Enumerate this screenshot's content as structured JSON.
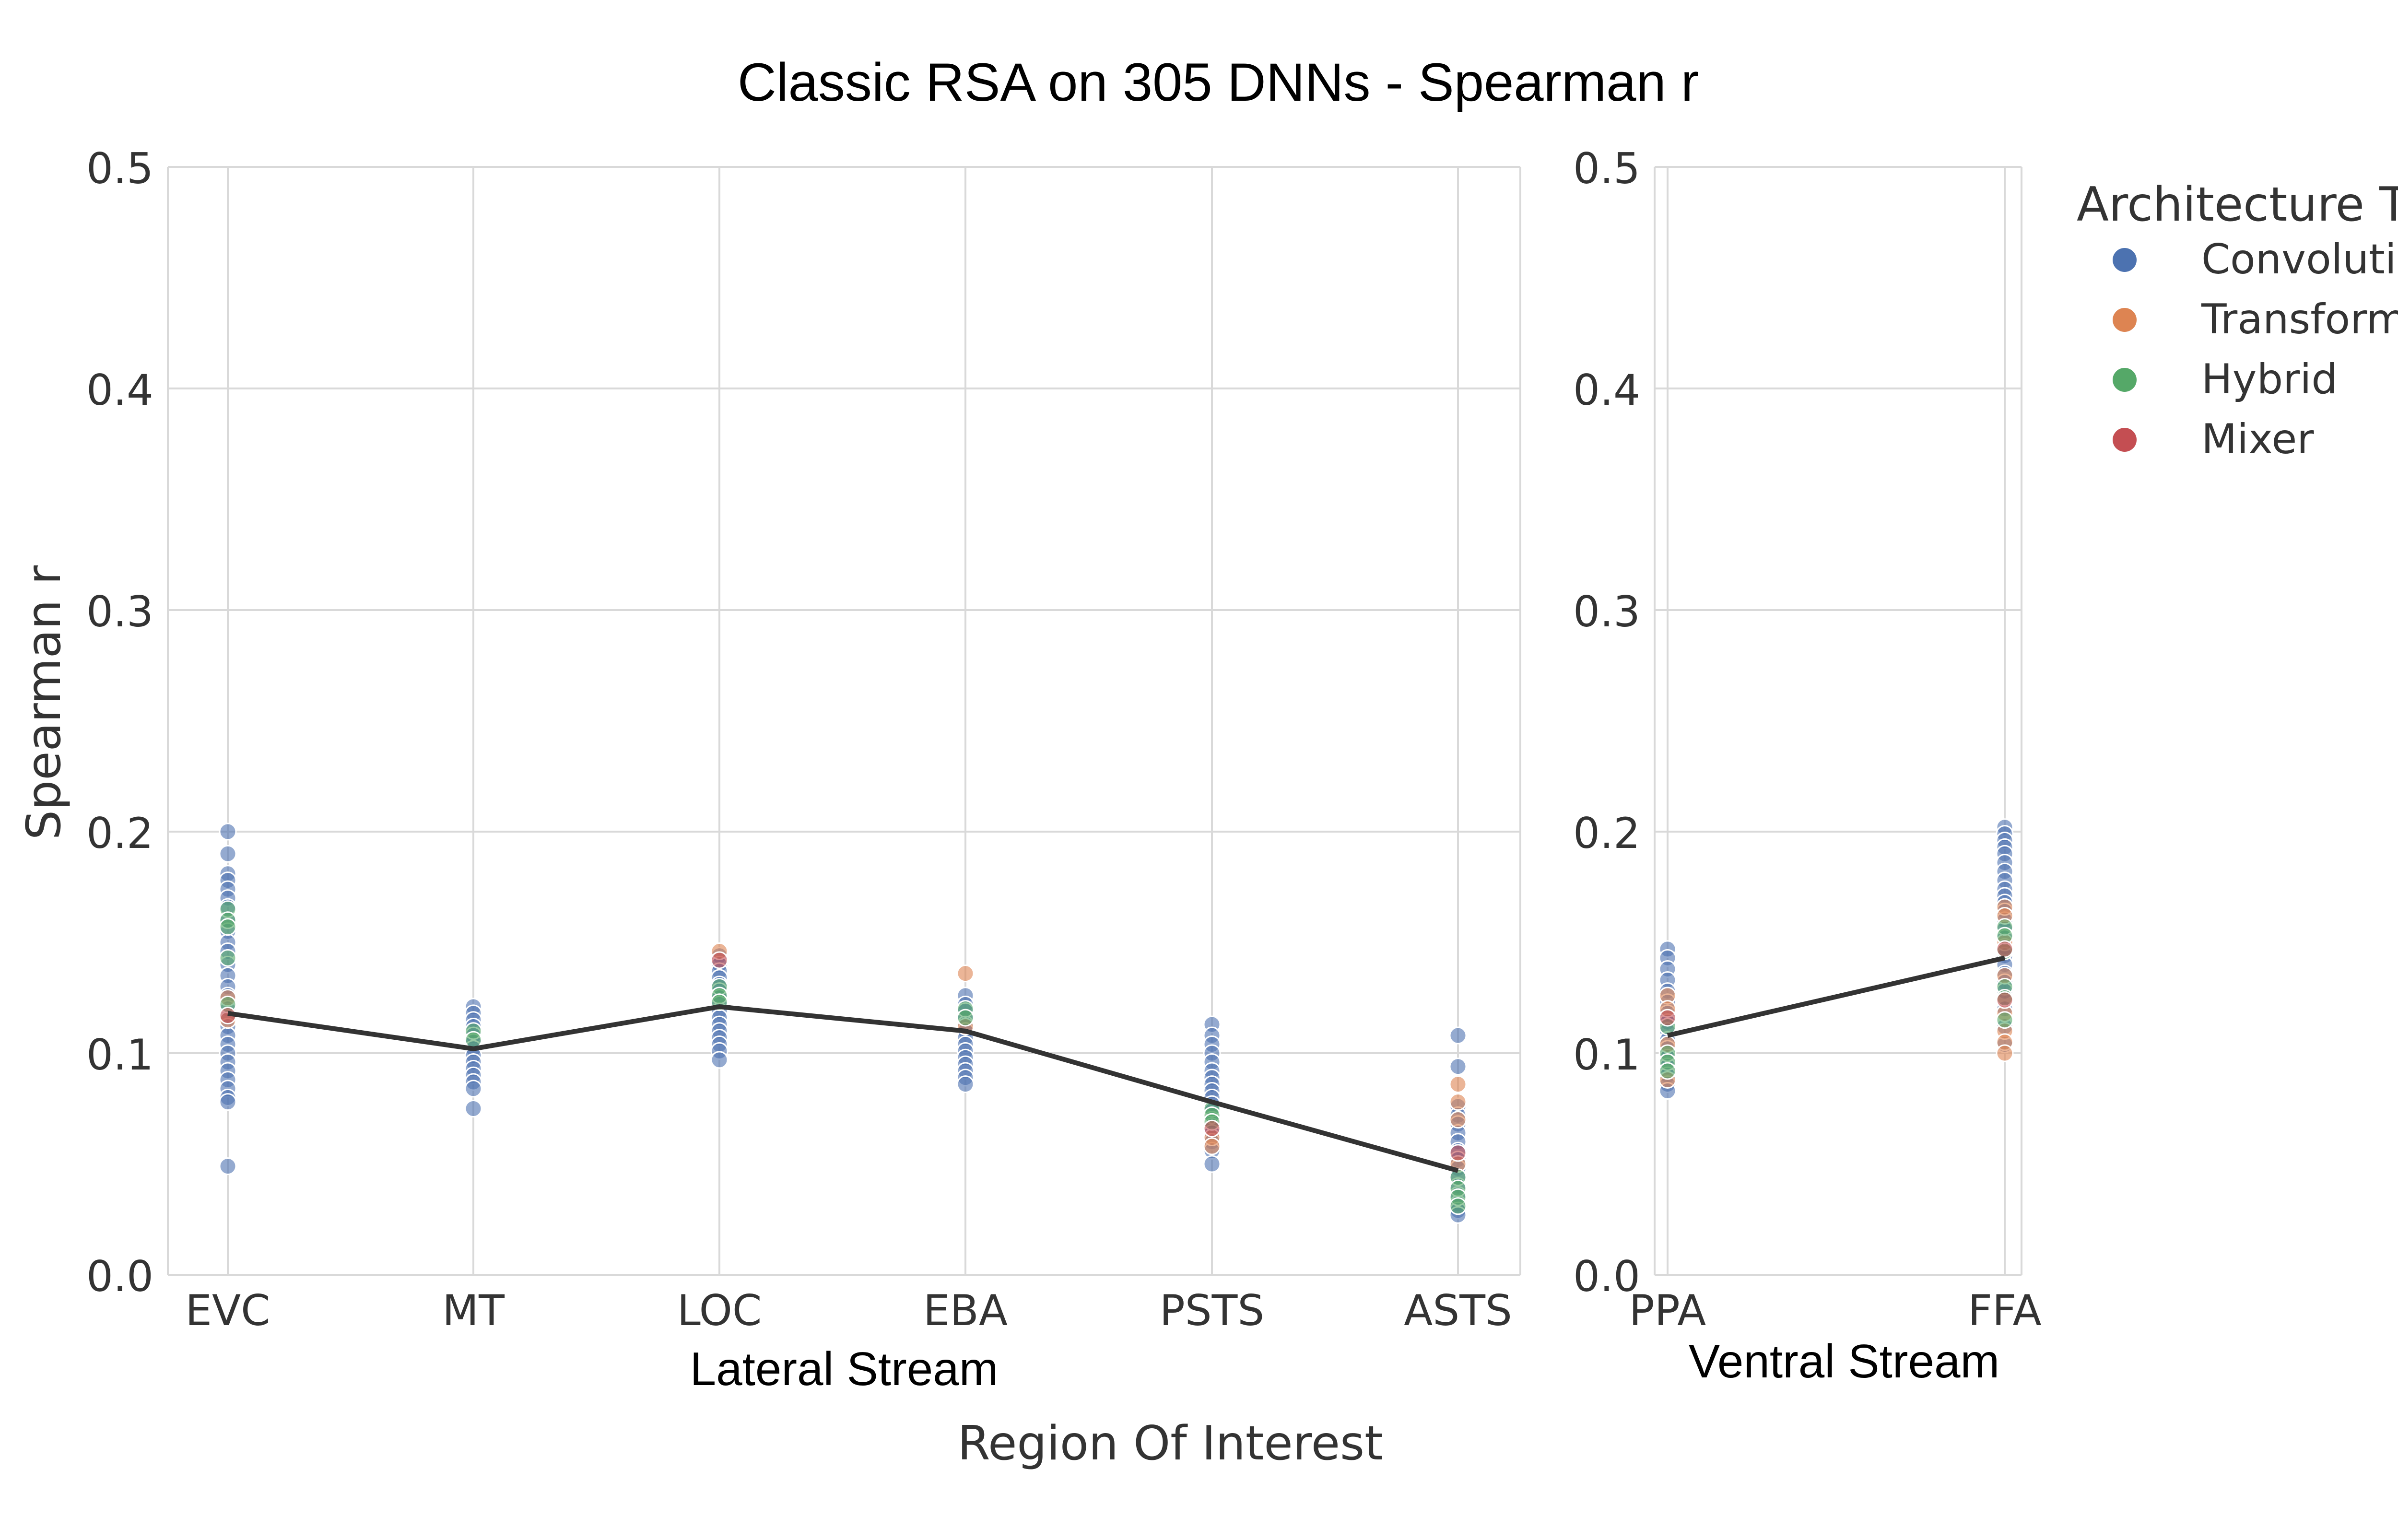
{
  "chart_data": {
    "type": "scatter",
    "title": "Classic RSA on 305 DNNs - Spearman r",
    "ylabel": "Spearman r",
    "xlabel": "Region Of Interest",
    "ylim": [
      0,
      0.5
    ],
    "yticks": [
      "0.0",
      "0.1",
      "0.2",
      "0.3",
      "0.4",
      "0.5"
    ],
    "grid": true,
    "legend": {
      "title": "Architecture Type",
      "placement": "right",
      "entries": [
        {
          "name": "Convolutional",
          "color": "#4c72b0"
        },
        {
          "name": "Transformer",
          "color": "#dd8452"
        },
        {
          "name": "Hybrid",
          "color": "#55a868"
        },
        {
          "name": "Mixer",
          "color": "#c44e52"
        }
      ]
    },
    "panels": [
      {
        "subtitle": "Lateral Stream",
        "categories": [
          "EVC",
          "MT",
          "LOC",
          "EBA",
          "PSTS",
          "ASTS"
        ],
        "mean_line": [
          0.118,
          0.102,
          0.121,
          0.11,
          0.078,
          0.047
        ],
        "series": [
          {
            "name": "Convolutional",
            "points": {
              "EVC": [
                0.2,
                0.19,
                0.181,
                0.178,
                0.174,
                0.17,
                0.166,
                0.16,
                0.155,
                0.15,
                0.146,
                0.14,
                0.135,
                0.13,
                0.126,
                0.12,
                0.116,
                0.112,
                0.108,
                0.104,
                0.1,
                0.096,
                0.092,
                0.088,
                0.084,
                0.08,
                0.078,
                0.049
              ],
              "MT": [
                0.121,
                0.118,
                0.115,
                0.112,
                0.108,
                0.105,
                0.102,
                0.099,
                0.096,
                0.093,
                0.09,
                0.087,
                0.084,
                0.075
              ],
              "LOC": [
                0.144,
                0.14,
                0.137,
                0.134,
                0.131,
                0.128,
                0.125,
                0.122,
                0.119,
                0.116,
                0.113,
                0.11,
                0.107,
                0.104,
                0.101,
                0.097
              ],
              "EBA": [
                0.126,
                0.122,
                0.119,
                0.116,
                0.113,
                0.11,
                0.107,
                0.104,
                0.101,
                0.098,
                0.095,
                0.092,
                0.089,
                0.086
              ],
              "PSTS": [
                0.113,
                0.108,
                0.104,
                0.1,
                0.096,
                0.092,
                0.089,
                0.086,
                0.083,
                0.08,
                0.077,
                0.074,
                0.07,
                0.067,
                0.064,
                0.06,
                0.056,
                0.05
              ],
              "ASTS": [
                0.108,
                0.094,
                0.076,
                0.072,
                0.068,
                0.064,
                0.06,
                0.056,
                0.052,
                0.048,
                0.044,
                0.04,
                0.036,
                0.032,
                0.029,
                0.027
              ]
            }
          },
          {
            "name": "Transformer",
            "points": {
              "EVC": [
                0.125,
                0.115
              ],
              "MT": [],
              "LOC": [
                0.146
              ],
              "EBA": [
                0.136,
                0.112
              ],
              "PSTS": [
                0.062,
                0.058
              ],
              "ASTS": [
                0.086,
                0.078,
                0.07,
                0.05
              ]
            }
          },
          {
            "name": "Hybrid",
            "points": {
              "EVC": [
                0.165,
                0.16,
                0.157,
                0.143,
                0.122
              ],
              "MT": [
                0.11,
                0.106
              ],
              "LOC": [
                0.13,
                0.126,
                0.123
              ],
              "EBA": [
                0.12,
                0.116
              ],
              "PSTS": [
                0.075,
                0.072,
                0.069
              ],
              "ASTS": [
                0.044,
                0.039,
                0.035,
                0.031
              ]
            }
          },
          {
            "name": "Mixer",
            "points": {
              "EVC": [
                0.117
              ],
              "MT": [],
              "LOC": [
                0.142
              ],
              "EBA": [],
              "PSTS": [
                0.066
              ],
              "ASTS": [
                0.055
              ]
            }
          }
        ]
      },
      {
        "subtitle": "Ventral Stream",
        "categories": [
          "PPA",
          "FFA"
        ],
        "mean_line": [
          0.108,
          0.143
        ],
        "series": [
          {
            "name": "Convolutional",
            "points": {
              "PPA": [
                0.147,
                0.143,
                0.138,
                0.133,
                0.128,
                0.123,
                0.118,
                0.114,
                0.11,
                0.106,
                0.102,
                0.098,
                0.094,
                0.09,
                0.086,
                0.083
              ],
              "FFA": [
                0.202,
                0.199,
                0.196,
                0.193,
                0.19,
                0.186,
                0.182,
                0.178,
                0.174,
                0.171,
                0.168,
                0.164,
                0.16,
                0.156,
                0.152,
                0.148,
                0.144,
                0.14,
                0.136,
                0.132,
                0.128,
                0.12,
                0.112,
                0.104
              ]
            }
          },
          {
            "name": "Transformer",
            "points": {
              "PPA": [
                0.126,
                0.12,
                0.104,
                0.088
              ],
              "FFA": [
                0.166,
                0.162,
                0.15,
                0.135,
                0.118,
                0.11,
                0.105,
                0.1
              ]
            }
          },
          {
            "name": "Hybrid",
            "points": {
              "PPA": [
                0.112,
                0.1,
                0.096,
                0.092
              ],
              "FFA": [
                0.157,
                0.153,
                0.146,
                0.13,
                0.125,
                0.115
              ]
            }
          },
          {
            "name": "Mixer",
            "points": {
              "PPA": [
                0.116
              ],
              "FFA": [
                0.147,
                0.124
              ]
            }
          }
        ]
      }
    ]
  }
}
